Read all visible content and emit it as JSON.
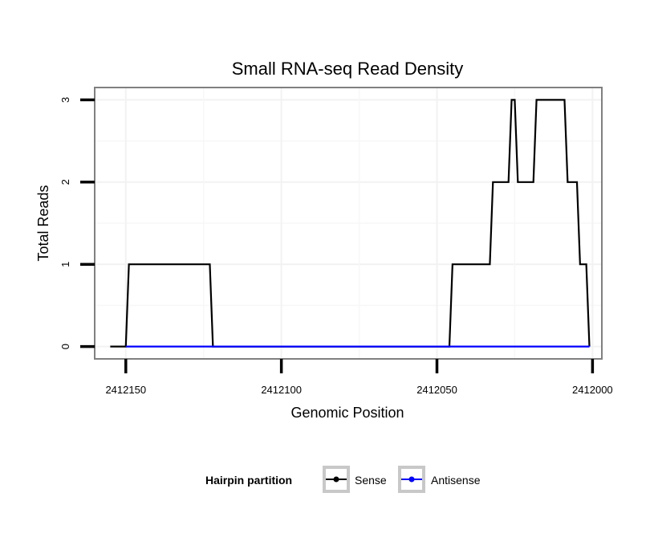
{
  "chart_data": {
    "type": "line",
    "title": "Small RNA-seq Read Density",
    "xlabel": "Genomic Position",
    "ylabel": "Total Reads",
    "x_reversed": true,
    "xlim": [
      2412160,
      2411997
    ],
    "ylim": [
      -0.15,
      3.15
    ],
    "xticks": [
      2412150,
      2412100,
      2412050,
      2412000
    ],
    "xtick_labels": [
      "2412150",
      "2412100",
      "2412050",
      "2412000"
    ],
    "yticks": [
      0,
      1,
      2,
      3
    ],
    "ytick_labels": [
      "0",
      "1",
      "2",
      "3"
    ],
    "grid": true,
    "legend": {
      "title": "Hairpin partition",
      "position": "bottom",
      "entries": [
        {
          "label": "Sense",
          "color": "#000000"
        },
        {
          "label": "Antisense",
          "color": "#0000ff"
        }
      ]
    },
    "series": [
      {
        "name": "Sense",
        "color": "#000000",
        "points": [
          [
            2412155,
            0
          ],
          [
            2412150,
            0
          ],
          [
            2412149,
            1
          ],
          [
            2412123,
            1
          ],
          [
            2412122,
            0
          ],
          [
            2412046,
            0
          ],
          [
            2412045,
            1
          ],
          [
            2412033,
            1
          ],
          [
            2412032,
            2
          ],
          [
            2412027,
            2
          ],
          [
            2412026,
            3
          ],
          [
            2412025,
            3
          ],
          [
            2412024,
            2
          ],
          [
            2412019,
            2
          ],
          [
            2412018,
            3
          ],
          [
            2412009,
            3
          ],
          [
            2412008,
            2
          ],
          [
            2412005,
            2
          ],
          [
            2412004,
            1
          ],
          [
            2412002,
            1
          ],
          [
            2412001,
            0
          ]
        ]
      },
      {
        "name": "Antisense",
        "color": "#0000ff",
        "points": [
          [
            2412150,
            0
          ],
          [
            2412001,
            0
          ]
        ]
      }
    ]
  }
}
